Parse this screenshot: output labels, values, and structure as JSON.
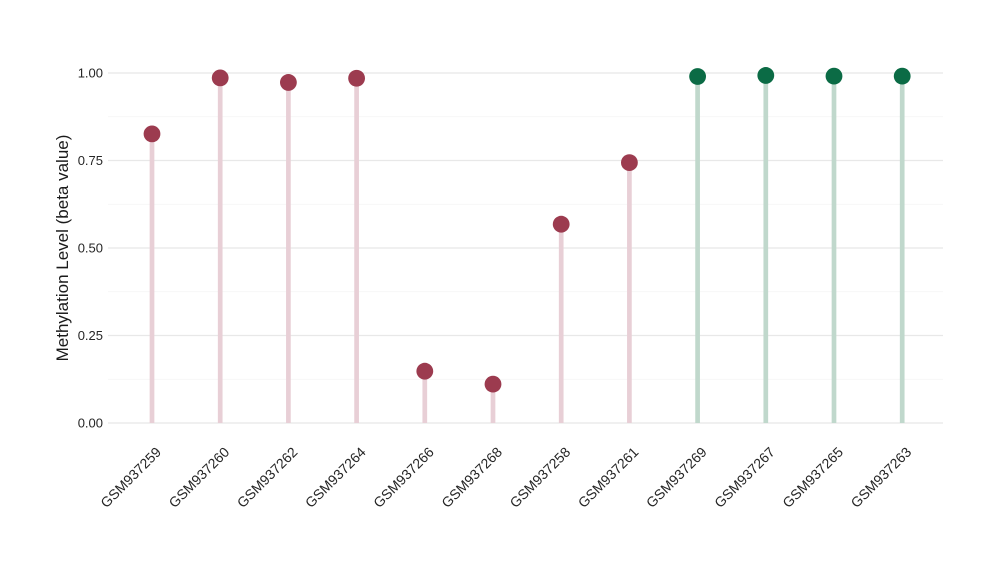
{
  "chart_data": {
    "type": "scatter",
    "style": "lollipop",
    "orientation": "vertical",
    "title": "",
    "xlabel": "",
    "ylabel": "Methylation Level (beta value)",
    "categories": [
      "GSM937259",
      "GSM937260",
      "GSM937262",
      "GSM937264",
      "GSM937266",
      "GSM937268",
      "GSM937258",
      "GSM937261",
      "GSM937269",
      "GSM937267",
      "GSM937265",
      "GSM937263"
    ],
    "values": [
      0.826,
      0.986,
      0.973,
      0.985,
      0.148,
      0.111,
      0.568,
      0.744,
      0.99,
      0.993,
      0.991,
      0.991
    ],
    "point_groups": [
      "maroon",
      "maroon",
      "maroon",
      "maroon",
      "maroon",
      "maroon",
      "maroon",
      "maroon",
      "green",
      "green",
      "green",
      "green"
    ],
    "group_colors": {
      "maroon": {
        "point": "#9c3b4f",
        "stem": "#e8cfd6"
      },
      "green": {
        "point": "#0b6b45",
        "stem": "#c0d8cc"
      }
    },
    "ylim": [
      0,
      1.05
    ],
    "yticks": [
      0,
      0.25,
      0.5,
      0.75,
      1.0
    ],
    "ytick_labels": [
      "0.00",
      "0.25",
      "0.50",
      "0.75",
      "1.00"
    ],
    "yticks_minor": [
      0.125,
      0.375,
      0.625,
      0.875
    ],
    "grid": {
      "horizontal": true,
      "vertical": false
    },
    "legend": "none",
    "x_tick_rotation_deg": 45
  },
  "colors": {
    "background": "#ffffff",
    "grid_major": "#e8e8e8",
    "grid_minor": "#f3f3f3",
    "tick_text": "#262626",
    "axis_title_text": "#1a1a1a"
  }
}
